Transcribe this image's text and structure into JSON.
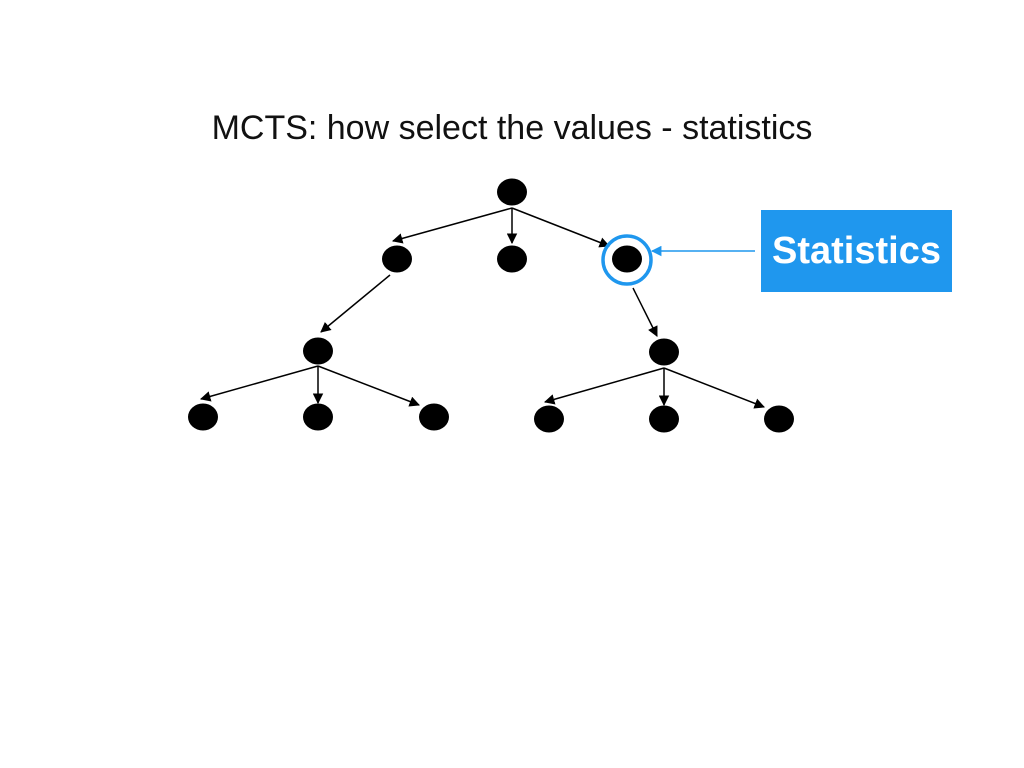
{
  "slide": {
    "title": "MCTS: how select the values - statistics",
    "callout_label": "Statistics"
  },
  "colors": {
    "node": "#000000",
    "edge": "#000000",
    "highlight": "#1f97ee",
    "callout_bg": "#1f97ee",
    "callout_text": "#ffffff"
  },
  "diagram": {
    "type": "tree",
    "nodes": [
      "root",
      "l1-left",
      "l1-middle",
      "l1-right",
      "l2-left",
      "l2-right",
      "l3-1",
      "l3-2",
      "l3-3",
      "l3-4",
      "l3-5",
      "l3-6"
    ],
    "edges": [
      [
        "root",
        "l1-left"
      ],
      [
        "root",
        "l1-middle"
      ],
      [
        "root",
        "l1-right"
      ],
      [
        "l1-left",
        "l2-left"
      ],
      [
        "l1-right",
        "l2-right"
      ],
      [
        "l2-left",
        "l3-1"
      ],
      [
        "l2-left",
        "l3-2"
      ],
      [
        "l2-left",
        "l3-3"
      ],
      [
        "l2-right",
        "l3-4"
      ],
      [
        "l2-right",
        "l3-5"
      ],
      [
        "l2-right",
        "l3-6"
      ]
    ],
    "highlighted_node": "l1-right"
  }
}
